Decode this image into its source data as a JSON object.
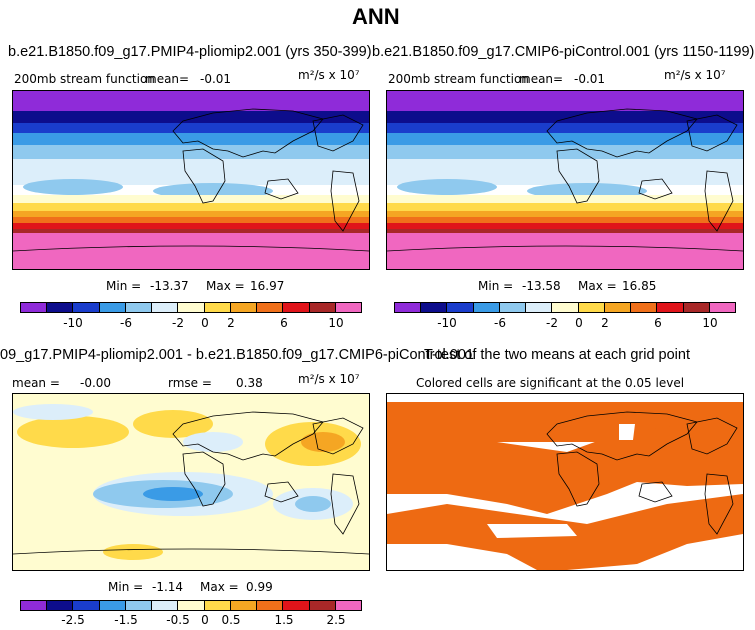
{
  "title": "ANN",
  "panels": {
    "top_left": {
      "case": "b.e21.B1850.f09_g17.PMIP4-pliomip2.001 (yrs 350-399)",
      "variable": "200mb stream function",
      "mean_label": "mean=",
      "mean_value": "-0.01",
      "units": "m²/s x 10⁷",
      "min_label": "Min =",
      "min_value": "-13.37",
      "max_label": "Max =",
      "max_value": "16.97"
    },
    "top_right": {
      "case": "b.e21.B1850.f09_g17.CMIP6-piControl.001 (yrs 1150-1199)",
      "variable": "200mb stream function",
      "mean_label": "mean=",
      "mean_value": "-0.01",
      "units": "m²/s x 10⁷",
      "min_label": "Min =",
      "min_value": "-13.58",
      "max_label": "Max =",
      "max_value": "16.85"
    },
    "bottom_left": {
      "case": "09_g17.PMIP4-pliomip2.001 - b.e21.B1850.f09_g17.CMIP6-piControl.001",
      "mean_label": "mean =",
      "mean_value": "-0.00",
      "rmse_label": "rmse =",
      "rmse_value": "0.38",
      "units": "m²/s x 10⁷",
      "min_label": "Min =",
      "min_value": "-1.14",
      "max_label": "Max =",
      "max_value": "0.99"
    },
    "bottom_right": {
      "title": "T-test of the two means at each grid point",
      "subtitle": "Colored cells are significant at the 0.05 level"
    }
  },
  "colorbar_top": {
    "colors": [
      "#8f2bd9",
      "#0d0d8c",
      "#1a3dcc",
      "#3a9be6",
      "#8fc9ee",
      "#dceefa",
      "#fffcd0",
      "#ffda4a",
      "#f5a623",
      "#f0701a",
      "#e0141a",
      "#a82828",
      "#f067c0"
    ],
    "tick_labels": [
      "-10",
      "-6",
      "-2",
      "0",
      "2",
      "6",
      "10"
    ]
  },
  "colorbar_bottom": {
    "colors": [
      "#8f2bd9",
      "#0d0d8c",
      "#1a3dcc",
      "#3a9be6",
      "#8fc9ee",
      "#dceefa",
      "#fffcd0",
      "#ffda4a",
      "#f5a623",
      "#f0701a",
      "#e0141a",
      "#a82828",
      "#f067c0"
    ],
    "tick_labels": [
      "-2.5",
      "-1.5",
      "-0.5",
      "0",
      "0.5",
      "1.5",
      "2.5"
    ]
  },
  "colors": {
    "significant": "#ee6a12"
  }
}
